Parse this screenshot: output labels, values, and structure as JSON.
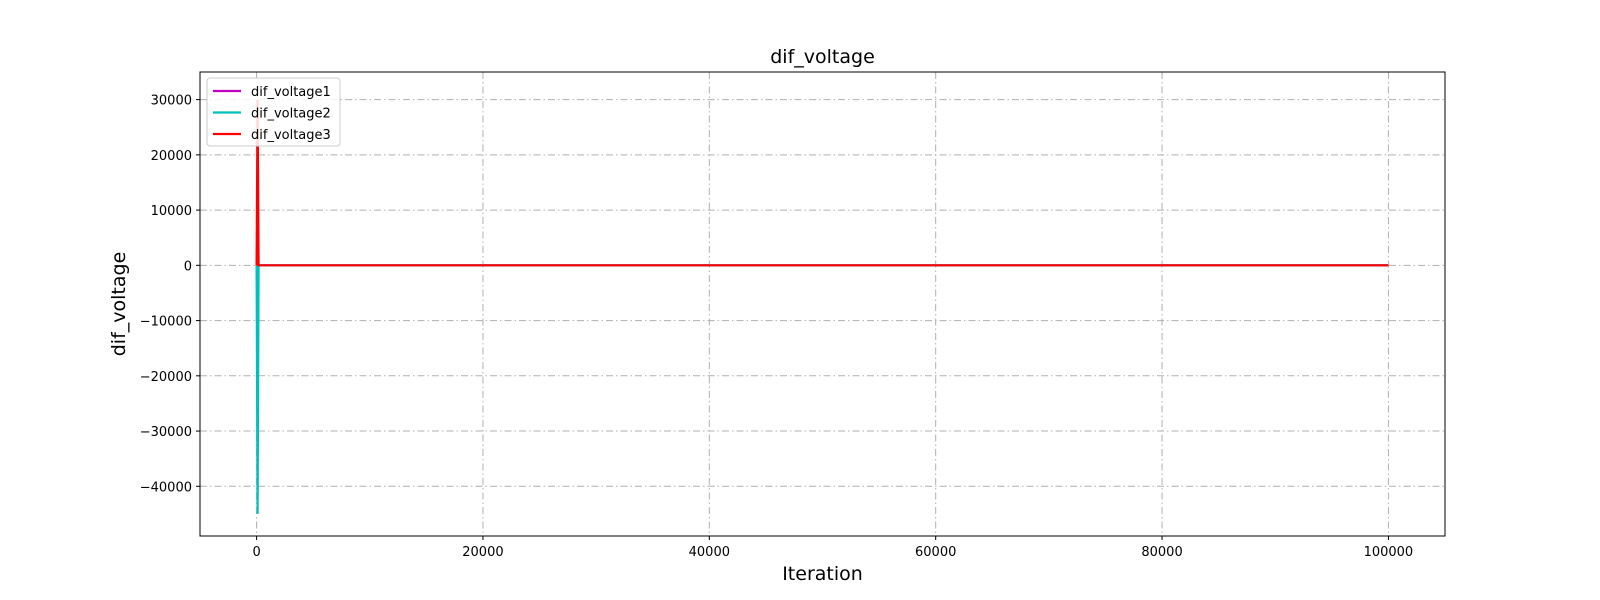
{
  "chart_data": {
    "type": "line",
    "title": "dif_voltage",
    "xlabel": "Iteration",
    "ylabel": "dif_voltage",
    "xlim": [
      -5000,
      105000
    ],
    "ylim": [
      -49000,
      35000
    ],
    "xticks": [
      0,
      20000,
      40000,
      60000,
      80000,
      100000
    ],
    "xtick_labels": [
      "0",
      "20000",
      "40000",
      "60000",
      "80000",
      "100000"
    ],
    "yticks": [
      -40000,
      -30000,
      -20000,
      -10000,
      0,
      10000,
      20000,
      30000
    ],
    "ytick_labels": [
      "−40000",
      "−30000",
      "−20000",
      "−10000",
      "0",
      "10000",
      "20000",
      "30000"
    ],
    "grid": true,
    "legend_position": "top-left",
    "series": [
      {
        "name": "dif_voltage1",
        "color": "#bf00bf",
        "x": [
          0,
          1,
          2,
          100000
        ],
        "y": [
          0,
          0,
          0,
          0
        ]
      },
      {
        "name": "dif_voltage2",
        "color": "#00bfbf",
        "x": [
          0,
          1,
          2,
          100000
        ],
        "y": [
          0,
          -45000,
          0,
          0
        ]
      },
      {
        "name": "dif_voltage3",
        "color": "#ff0000",
        "x": [
          0,
          1,
          2,
          100000
        ],
        "y": [
          0,
          30000,
          0,
          0
        ]
      }
    ]
  }
}
